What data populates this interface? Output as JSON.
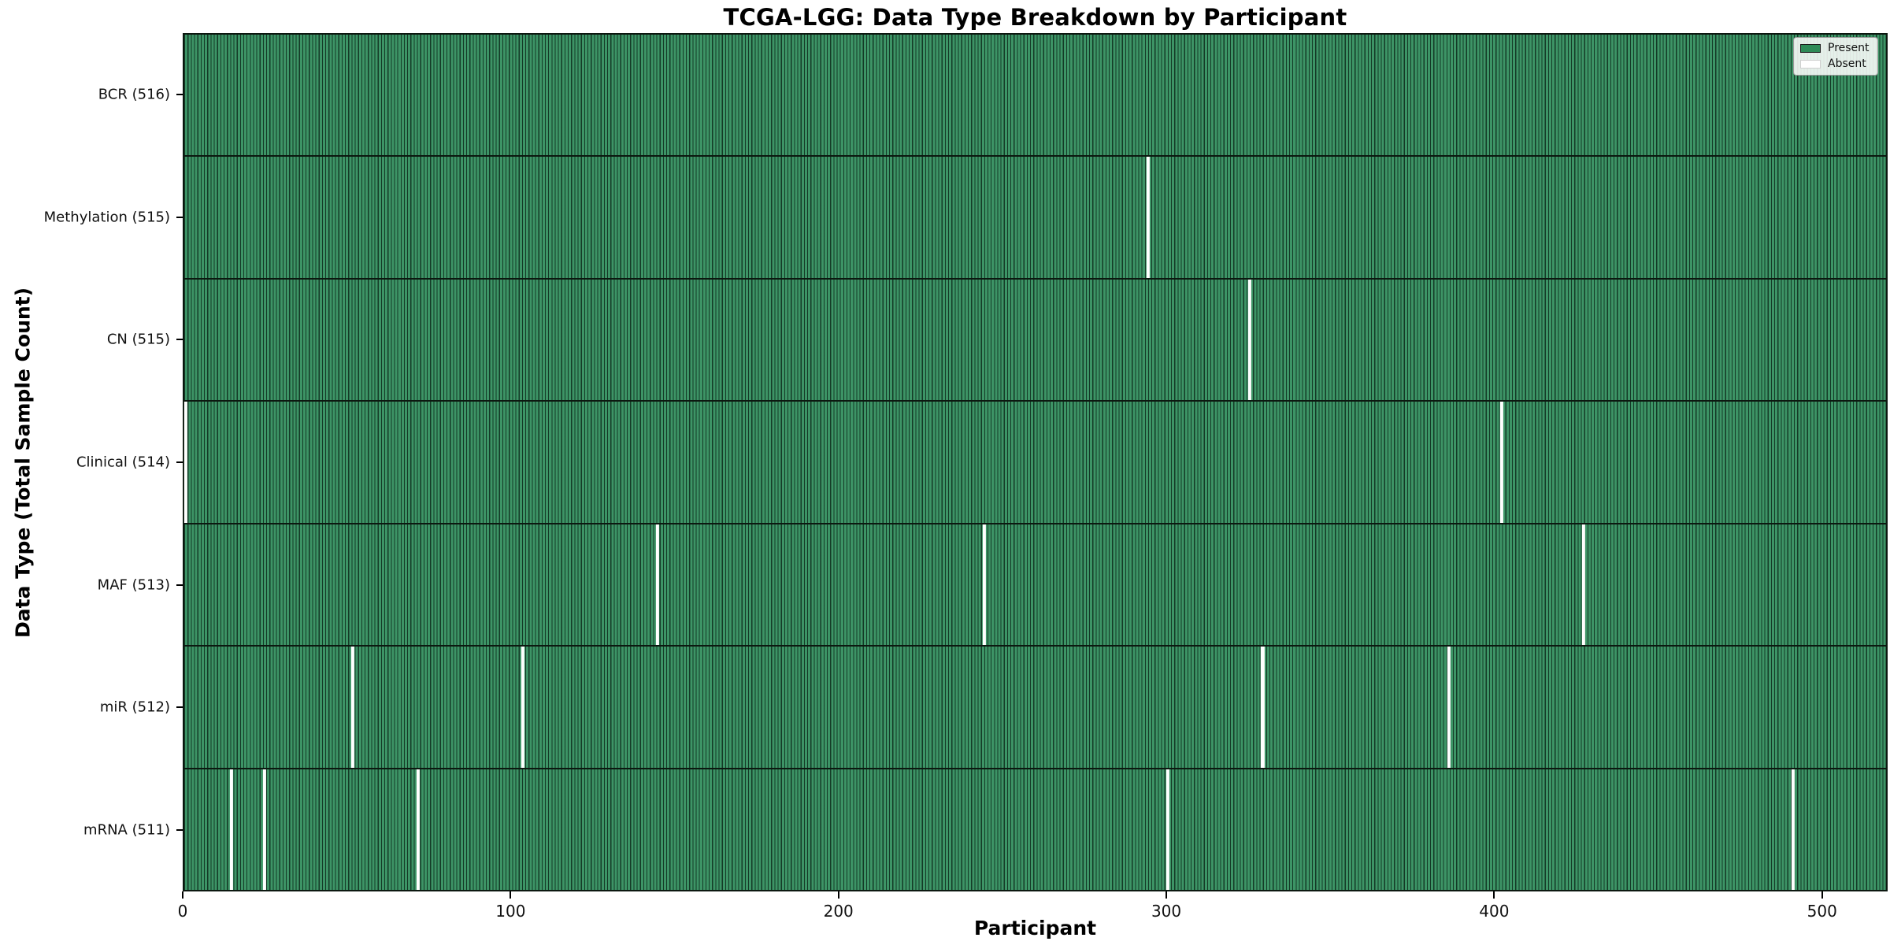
{
  "figure": {
    "title": "TCGA-LGG: Data Type Breakdown by Participant",
    "xlabel": "Participant",
    "ylabel": "Data Type (Total Sample Count)"
  },
  "colors": {
    "present_fill": "#2e8b57",
    "present_stripe_light": "#3d9466",
    "bar_edge_dark": "#0c1810",
    "absent_fill": "#ffffff",
    "axis_color": "#000000",
    "legend_border": "#9a9a9a"
  },
  "chart_data": {
    "type": "heatmap",
    "title": "TCGA-LGG: Data Type Breakdown by Participant",
    "xlabel": "Participant",
    "ylabel": "Data Type (Total Sample Count)",
    "x_ticks": [
      0,
      100,
      200,
      300,
      400,
      500
    ],
    "xlim": [
      0,
      520
    ],
    "n_participants": 516,
    "grid": false,
    "legend_position": "upper right",
    "legend_entries": [
      {
        "label": "Present",
        "color": "#2e8b57"
      },
      {
        "label": "Absent",
        "color": "#ffffff"
      }
    ],
    "rows": [
      {
        "label": "BCR (516)",
        "data_type": "BCR",
        "total_samples": 516,
        "absent_participants": []
      },
      {
        "label": "Methylation (515)",
        "data_type": "Methylation",
        "total_samples": 515,
        "absent_participants": [
          294
        ]
      },
      {
        "label": "CN (515)",
        "data_type": "CN",
        "total_samples": 515,
        "absent_participants": [
          325
        ]
      },
      {
        "label": "Clinical (514)",
        "data_type": "Clinical",
        "total_samples": 514,
        "absent_participants": [
          0,
          402
        ]
      },
      {
        "label": "MAF (513)",
        "data_type": "MAF",
        "total_samples": 513,
        "absent_participants": [
          144,
          244,
          427
        ]
      },
      {
        "label": "miR (512)",
        "data_type": "miR",
        "total_samples": 512,
        "absent_participants": [
          51,
          103,
          329,
          386
        ]
      },
      {
        "label": "mRNA (511)",
        "data_type": "mRNA",
        "total_samples": 511,
        "absent_participants": [
          14,
          24,
          71,
          300,
          491
        ]
      }
    ]
  }
}
